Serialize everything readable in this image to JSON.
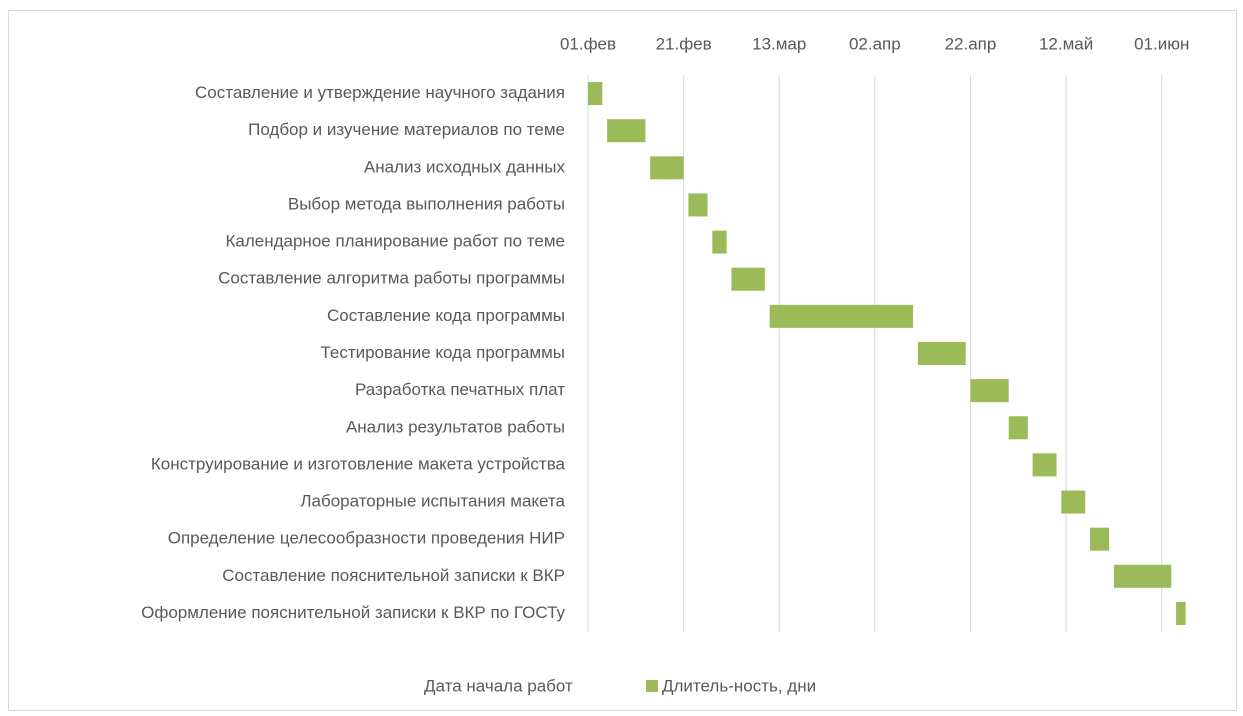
{
  "chart_data": {
    "type": "gantt",
    "categories": [
      "Составление и утверждение научного задания",
      "Подбор и изучение материалов по теме",
      "Анализ исходных данных",
      "Выбор метода выполнения работы",
      "Календарное планирование работ по теме",
      "Составление алгоритма работы программы",
      "Составление кода программы",
      "Тестирование кода программы",
      "Разработка печатных плат",
      "Анализ результатов работы",
      "Конструирование и изготовление макета устройства",
      "Лабораторные испытания макета",
      "Определение целесообразности проведения НИР",
      "Составление пояснительной записки к ВКР",
      "Оформление пояснительной записки к ВКР по ГОСТу"
    ],
    "series": [
      {
        "name": "Дата начала работ",
        "color": "none",
        "values": [
          32,
          36,
          45,
          53,
          58,
          62,
          70,
          101,
          112,
          120,
          125,
          131,
          137,
          142,
          155
        ]
      },
      {
        "name": "Длитель-ность, дни",
        "color": "#9bbb59",
        "values": [
          3,
          8,
          7,
          4,
          3,
          7,
          30,
          10,
          8,
          4,
          5,
          5,
          4,
          12,
          2
        ]
      }
    ],
    "xlim": [
      32,
      158
    ],
    "xticks": [
      {
        "value": 32,
        "label": "01.фев"
      },
      {
        "value": 52,
        "label": "21.фев"
      },
      {
        "value": 72,
        "label": "13.мар"
      },
      {
        "value": 92,
        "label": "02.апр"
      },
      {
        "value": 112,
        "label": "22.апр"
      },
      {
        "value": 132,
        "label": "12.май"
      },
      {
        "value": 152,
        "label": "01.июн"
      }
    ],
    "grid": true,
    "legend": "bottom"
  }
}
